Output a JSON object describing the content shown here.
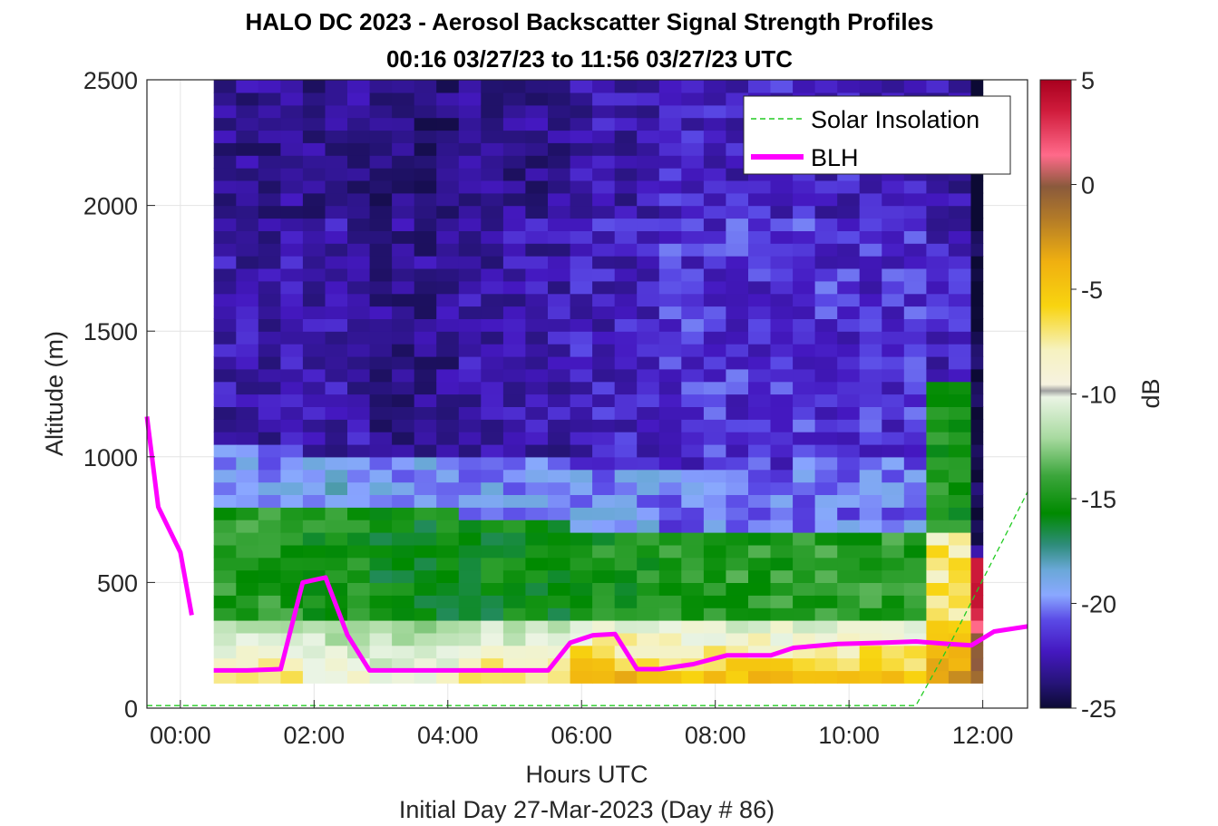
{
  "chart_data": {
    "type": "heatmap",
    "title_line1": "HALO DC 2023 - Aerosol Backscatter Signal Strength Profiles",
    "title_line2": "00:16 03/27/23 to 11:56 03/27/23  UTC",
    "xlabel": "Hours UTC",
    "xlabel2": "Initial Day 27-Mar-2023 (Day # 86)",
    "ylabel": "Altitude (m)",
    "colorbar_label": "dB",
    "xlim_hours": [
      -0.5,
      12.67
    ],
    "ylim": [
      0,
      2500
    ],
    "x_ticks": [
      {
        "value": 0,
        "label": "00:00"
      },
      {
        "value": 2,
        "label": "02:00"
      },
      {
        "value": 4,
        "label": "04:00"
      },
      {
        "value": 6,
        "label": "06:00"
      },
      {
        "value": 8,
        "label": "08:00"
      },
      {
        "value": 10,
        "label": "10:00"
      },
      {
        "value": 12,
        "label": "12:00"
      }
    ],
    "y_ticks": [
      0,
      500,
      1000,
      1500,
      2000,
      2500
    ],
    "clim": [
      -25,
      5
    ],
    "colorbar_ticks": [
      5,
      0,
      -5,
      -10,
      -15,
      -20,
      -25
    ],
    "grid": true,
    "legend_position": "top-right",
    "legend": [
      {
        "name": "Solar Insolation",
        "style": "dashed",
        "color": "#22cc22"
      },
      {
        "name": "BLH",
        "style": "solid",
        "color": "#ff00ff"
      }
    ],
    "heatmap": {
      "time_start_hours": 0.5,
      "time_step_hours": 0.333,
      "alt_start_m": 100,
      "alt_step_m": 50,
      "columns": [
        {
          "t_end": 1.5,
          "sfc_db": -9,
          "ml_top": 800,
          "ml_db": -15.5,
          "tr_top": 1050,
          "tr_db": -20,
          "ft_db": -22.5
        },
        {
          "t_end": 2.5,
          "sfc_db": -10,
          "ml_top": 780,
          "ml_db": -16,
          "tr_top": 1000,
          "tr_db": -19.5,
          "ft_db": -22.5
        },
        {
          "t_end": 4.0,
          "sfc_db": -10.5,
          "ml_top": 760,
          "ml_db": -16.5,
          "tr_top": 1000,
          "tr_db": -20,
          "ft_db": -23
        },
        {
          "t_end": 5.5,
          "sfc_db": -8.5,
          "ml_top": 720,
          "ml_db": -16.5,
          "tr_top": 1000,
          "tr_db": -20,
          "ft_db": -22.5
        },
        {
          "t_end": 7.0,
          "sfc_db": -6.5,
          "ml_top": 680,
          "ml_db": -16,
          "tr_top": 950,
          "tr_db": -20,
          "ft_db": -22
        },
        {
          "t_end": 9.0,
          "sfc_db": -7,
          "ml_top": 680,
          "ml_db": -15.5,
          "tr_top": 950,
          "tr_db": -20.5,
          "ft_db": -21.5
        },
        {
          "t_end": 11.0,
          "sfc_db": -7,
          "ml_top": 700,
          "ml_db": -15.5,
          "tr_top": 1000,
          "tr_db": -20.5,
          "ft_db": -21.5
        },
        {
          "t_end": 11.67,
          "sfc_db": -5,
          "ml_top": 700,
          "ml_db": -9,
          "tr_top": 1300,
          "tr_db": -16,
          "ft_db": -22
        },
        {
          "t_end": 12.0,
          "sfc_db": -2,
          "ml_top": 560,
          "ml_db": 3,
          "tr_top": 650,
          "tr_db": -22,
          "ft_db": -24.5
        }
      ]
    },
    "series": [
      {
        "name": "BLH",
        "segments": [
          {
            "x": [
              -0.5,
              -0.33,
              0.0,
              0.17
            ],
            "y": [
              1160,
              800,
              620,
              370
            ]
          },
          {
            "x": [
              0.5,
              1.0,
              1.5,
              1.83,
              2.17,
              2.5,
              2.83,
              3.5,
              4.5,
              5.5,
              5.83,
              6.17,
              6.5,
              6.83,
              7.17,
              7.67,
              8.17,
              8.83,
              9.17,
              9.83,
              10.5,
              11.0,
              11.5,
              11.83,
              12.17,
              12.67
            ],
            "y": [
              150,
              150,
              155,
              500,
              520,
              290,
              150,
              150,
              150,
              150,
              260,
              290,
              295,
              155,
              155,
              175,
              210,
              210,
              240,
              255,
              260,
              265,
              255,
              250,
              305,
              325
            ]
          }
        ]
      },
      {
        "name": "Solar Insolation",
        "x": [
          -0.5,
          11.0,
          11.5,
          12.67
        ],
        "y": [
          10,
          10,
          250,
          860
        ]
      }
    ]
  }
}
